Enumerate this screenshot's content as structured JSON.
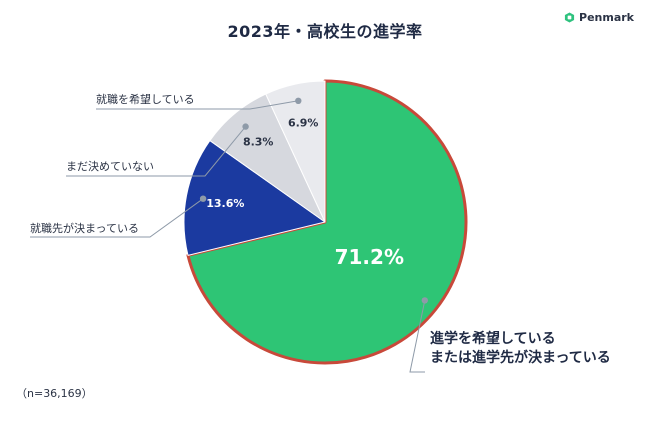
{
  "brand": {
    "name": "Penmark",
    "icon": "penmark-logo-icon",
    "color": "#2ec27e"
  },
  "footnote": "（n=36,169）",
  "chart_data": {
    "type": "pie",
    "title": "2023年・高校生の進学率",
    "legend": "callout-labels",
    "start_angle_deg": 0,
    "direction": "clockwise",
    "slices": [
      {
        "name_lines": [
          "進学を希望している",
          "または進学先が決まっている"
        ],
        "value": 71.2,
        "label": "71.2%",
        "color": "#2ec575",
        "label_color": "#ffffff"
      },
      {
        "name_lines": [
          "就職先が決まっている"
        ],
        "value": 13.6,
        "label": "13.6%",
        "color": "#1b3aa0",
        "label_color": "#ffffff"
      },
      {
        "name_lines": [
          "まだ決めていない"
        ],
        "value": 8.3,
        "label": "8.3%",
        "color": "#d6d8de",
        "label_color": "#2b3345"
      },
      {
        "name_lines": [
          "就職を希望している"
        ],
        "value": 6.9,
        "label": "6.9%",
        "color": "#e9eaee",
        "label_color": "#2b3345"
      }
    ],
    "highlight_border_color": "#c8493a",
    "leader_color": "#8e9aa8"
  }
}
